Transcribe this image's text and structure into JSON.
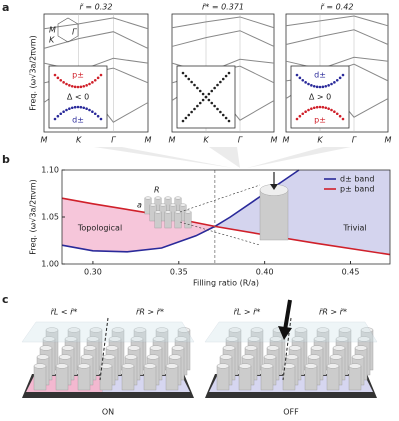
{
  "panel_labels": [
    "a",
    "b",
    "c"
  ],
  "chart_data": [
    {
      "type": "line",
      "title": "r̃ = 0.32",
      "ylabel": "Freq. (ω√3a/2πvm)",
      "categories": [
        "M",
        "K",
        "Γ",
        "M"
      ],
      "ylim": [
        0.4,
        1.6
      ],
      "color": "#888888",
      "bz_labels": [
        "M",
        "K",
        "Γ"
      ],
      "series": [
        {
          "values": [
            0.7,
            0.95,
            0.5,
            0.7
          ]
        },
        {
          "values": [
            0.9,
            0.98,
            1.05,
            0.9
          ]
        },
        {
          "values": [
            1.1,
            1.02,
            1.15,
            1.1
          ]
        },
        {
          "values": [
            1.25,
            1.35,
            1.42,
            1.25
          ]
        },
        {
          "values": [
            1.45,
            1.5,
            1.56,
            1.45
          ]
        }
      ],
      "inset": {
        "labels": [
          "p±",
          "Δ < 0",
          "d±"
        ],
        "top_color": "#d0202a",
        "bottom_color": "#2a2a9a",
        "gap": true
      }
    },
    {
      "type": "line",
      "title": "r̃* = 0.371",
      "categories": [
        "M",
        "K",
        "Γ",
        "M"
      ],
      "ylim": [
        0.4,
        1.6
      ],
      "color": "#888888",
      "series": [
        {
          "values": [
            0.72,
            0.95,
            0.52,
            0.72
          ]
        },
        {
          "values": [
            0.9,
            1.0,
            1.07,
            0.9
          ]
        },
        {
          "values": [
            1.1,
            1.0,
            1.14,
            1.1
          ]
        },
        {
          "values": [
            1.27,
            1.36,
            1.43,
            1.27
          ]
        },
        {
          "values": [
            1.46,
            1.52,
            1.57,
            1.46
          ]
        }
      ],
      "inset": {
        "labels": [],
        "top_color": "#222222",
        "bottom_color": "#222222",
        "gap": false
      }
    },
    {
      "type": "line",
      "title": "r̃ = 0.42",
      "categories": [
        "M",
        "K",
        "Γ",
        "M"
      ],
      "ylim": [
        0.4,
        1.6
      ],
      "color": "#888888",
      "series": [
        {
          "values": [
            0.74,
            0.96,
            0.55,
            0.74
          ]
        },
        {
          "values": [
            0.92,
            0.97,
            1.09,
            0.92
          ]
        },
        {
          "values": [
            1.12,
            1.04,
            1.16,
            1.12
          ]
        },
        {
          "values": [
            1.29,
            1.37,
            1.44,
            1.29
          ]
        },
        {
          "values": [
            1.48,
            1.53,
            1.58,
            1.48
          ]
        }
      ],
      "inset": {
        "labels": [
          "d±",
          "Δ > 0",
          "p±"
        ],
        "top_color": "#2a2a9a",
        "bottom_color": "#d0202a",
        "gap": true
      }
    },
    {
      "type": "line",
      "xlabel": "Filling ratio (R/a)",
      "ylabel": "Freq. (ω√3a/2πvm)",
      "xlim": [
        0.282,
        0.473
      ],
      "ylim": [
        1.0,
        1.1
      ],
      "xticks": [
        {
          "value": 0.3,
          "label": "0.30"
        },
        0.35,
        {
          "value": 0.4,
          "label": "0.40"
        },
        0.45
      ],
      "yticks": [
        {
          "value": 1.0,
          "label": "1.00"
        },
        1.05,
        {
          "value": 1.1,
          "label": "1.10"
        }
      ],
      "vline": 0.371,
      "legend": "upper right",
      "annotations": [
        "Topological",
        "Trivial"
      ],
      "inset_labels": [
        "R",
        "a"
      ],
      "series": [
        {
          "name": "d± band",
          "color": "#2a2a9a",
          "x": [
            0.282,
            0.3,
            0.32,
            0.34,
            0.36,
            0.371,
            0.38,
            0.4,
            0.42
          ],
          "values": [
            1.02,
            1.014,
            1.013,
            1.017,
            1.03,
            1.04,
            1.05,
            1.075,
            1.1
          ]
        },
        {
          "name": "p± band",
          "color": "#d0202a",
          "x": [
            0.282,
            0.3,
            0.33,
            0.371,
            0.4,
            0.43,
            0.473
          ],
          "values": [
            1.07,
            1.064,
            1.055,
            1.04,
            1.031,
            1.022,
            1.01
          ]
        }
      ],
      "fills": [
        "#f6c6da",
        "#d4d4ee"
      ]
    }
  ],
  "panel_c": [
    {
      "labels": [
        "r̃L < r̃*",
        "r̃R > r̃*"
      ],
      "state": "ON"
    },
    {
      "labels": [
        "r̃L > r̃*",
        "r̃R > r̃*"
      ],
      "state": "OFF"
    }
  ]
}
